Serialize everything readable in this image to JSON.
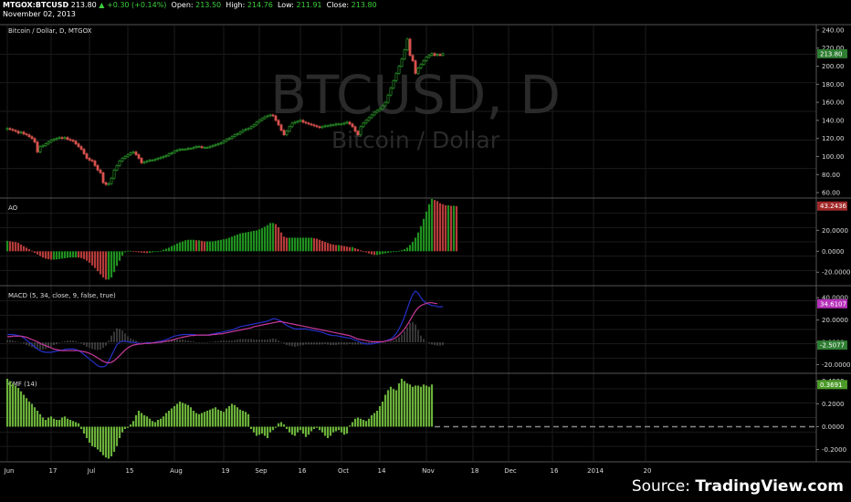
{
  "header": {
    "symbol": "MTGOX:BTCUSD",
    "last": "213.80",
    "change_arrow": "▲",
    "change": "+0.30 (+0.14%)",
    "open_label": "Open:",
    "open": "213.50",
    "high_label": "High:",
    "high": "214.76",
    "low_label": "Low:",
    "low": "211.91",
    "close_label": "Close:",
    "close": "213.80",
    "date": "November 02, 2013"
  },
  "source": {
    "prefix": "Source:",
    "name": "TradingView.com"
  },
  "colors": {
    "up": "#2fa62f",
    "down": "#d9534f",
    "ao_up": "#1f8f1f",
    "ao_down": "#b43a3a",
    "macd": "#2630c8",
    "signal": "#c8389a",
    "cmf": "#6ab03a",
    "grid": "#1b1b1b"
  },
  "chart_data": [
    {
      "type": "candlestick",
      "title": "Bitcoin / Dollar, D, MTGOX",
      "watermark": "BTCUSD, D",
      "watermark_sub": "Bitcoin / Dollar",
      "ylim": [
        55,
        245
      ],
      "yticks": [
        "240.00",
        "220.00",
        "200.00",
        "180.00",
        "160.00",
        "140.00",
        "120.00",
        "100.00",
        "80.00",
        "60.00"
      ],
      "last_value": "213.80",
      "close": [
        131,
        130,
        129,
        128,
        126,
        127,
        125,
        124,
        122,
        120,
        116,
        105,
        111,
        112,
        114,
        116,
        118,
        119,
        120,
        121,
        120,
        121,
        119,
        118,
        117,
        114,
        111,
        108,
        103,
        98,
        96,
        95,
        90,
        85,
        82,
        71,
        69,
        70,
        76,
        85,
        90,
        95,
        98,
        100,
        102,
        104,
        105,
        102,
        98,
        93,
        94,
        95,
        96,
        96,
        97,
        98,
        99,
        100,
        101,
        103,
        104,
        106,
        107,
        108,
        108,
        108,
        109,
        109,
        110,
        111,
        111,
        110,
        110,
        110,
        111,
        112,
        113,
        114,
        115,
        117,
        119,
        120,
        122,
        124,
        125,
        127,
        129,
        130,
        131,
        133,
        135,
        138,
        140,
        142,
        144,
        145,
        146,
        145,
        140,
        135,
        129,
        124,
        128,
        133,
        137,
        138,
        139,
        140,
        138,
        137,
        136,
        135,
        134,
        133,
        132,
        133,
        134,
        134,
        135,
        135,
        136,
        136,
        136,
        137,
        138,
        136,
        133,
        128,
        124,
        133,
        137,
        140,
        143,
        146,
        149,
        151,
        153,
        156,
        160,
        168,
        176,
        184,
        192,
        200,
        208,
        218,
        230,
        212,
        206,
        192,
        198,
        202,
        206,
        210,
        212,
        214,
        212,
        213,
        212,
        213.8
      ],
      "xtick_labels": [
        "Jun",
        "17",
        "Jul",
        "15",
        "Aug",
        "19",
        "Sep",
        "16",
        "Oct",
        "14",
        "Nov",
        "18",
        "Dec",
        "16",
        "2014",
        "20"
      ],
      "xtick_days": [
        0,
        16,
        30,
        44,
        61,
        79,
        92,
        107,
        122,
        136,
        153,
        170,
        183,
        199,
        214,
        233
      ]
    },
    {
      "type": "bar",
      "title": "AO",
      "ylim": [
        -32,
        50
      ],
      "yticks": [
        "20.0000",
        "0.0000",
        "-20.0000"
      ],
      "last_value": "43.2436",
      "values": [
        10,
        9.6,
        9.2,
        8.8,
        8,
        6.5,
        5,
        3.5,
        2,
        0.5,
        -1.5,
        -3,
        -4.5,
        -6,
        -7,
        -7.5,
        -8,
        -8,
        -7.8,
        -7.4,
        -7,
        -6.6,
        -6.2,
        -6,
        -5.8,
        -5.8,
        -6,
        -6.5,
        -7.5,
        -9,
        -11,
        -13.5,
        -16,
        -19,
        -22,
        -25,
        -27,
        -27,
        -25,
        -20,
        -14,
        -9,
        -4,
        -1,
        0.5,
        0.5,
        0,
        -0.5,
        -1,
        -1.3,
        -1.5,
        -1.8,
        -1.5,
        -1,
        -0.5,
        0,
        0.5,
        1.5,
        2.5,
        3.5,
        5,
        6,
        7.5,
        8.5,
        9.5,
        10.5,
        11,
        11,
        11,
        10.5,
        10.5,
        10,
        9.5,
        9.5,
        9.5,
        9.5,
        10,
        10.5,
        11,
        11.5,
        12,
        13,
        14,
        15,
        16,
        17,
        17.5,
        18,
        18.5,
        19,
        19.5,
        20,
        21,
        22,
        23.5,
        25,
        27,
        27,
        26,
        23,
        18,
        14,
        13,
        13,
        13,
        13,
        13,
        13,
        13,
        13,
        13,
        13,
        12.5,
        12,
        11,
        10,
        9,
        8,
        7,
        6.5,
        6,
        6,
        5.5,
        5,
        4.5,
        4,
        4,
        3,
        2,
        1,
        0,
        -1,
        -2,
        -3,
        -3.5,
        -3.5,
        -3,
        -2.5,
        -2,
        -1.5,
        -1,
        -0.5,
        0,
        0.5,
        1,
        2,
        3.5,
        6,
        9,
        13,
        18,
        24,
        31,
        38,
        45,
        50,
        49,
        48,
        46,
        45,
        44,
        44,
        43.5,
        43.5,
        43.2
      ],
      "xlim": [
        0,
        262
      ]
    },
    {
      "type": "line",
      "title": "MACD (5, 34, close, 9, false, true)",
      "ylim": [
        -27,
        50
      ],
      "yticks": [
        "40.0000",
        "20.0000",
        "0.0000",
        "-20.0000"
      ],
      "last_values": [
        "34.6107",
        "-2.5077"
      ],
      "series": [
        {
          "name": "MACD",
          "values": [
            7,
            7,
            7,
            6.5,
            6,
            5.5,
            4,
            2,
            0,
            -2,
            -4,
            -6,
            -7.5,
            -8.5,
            -9,
            -9,
            -9,
            -8.5,
            -8,
            -7.5,
            -7,
            -6.5,
            -6,
            -6,
            -6,
            -6.5,
            -7.5,
            -9,
            -11,
            -13,
            -15,
            -17,
            -19,
            -21,
            -22,
            -22,
            -21,
            -17,
            -12,
            -7,
            -2,
            0,
            1,
            1,
            0.5,
            0,
            0,
            -0.5,
            -1,
            -1,
            -1,
            -0.5,
            -0.5,
            -0.5,
            0,
            0.5,
            1,
            1.5,
            2.5,
            3.5,
            4.5,
            5.5,
            6,
            6.5,
            7,
            7,
            7,
            7,
            7,
            6.5,
            6.5,
            6.5,
            6.5,
            6.5,
            7,
            7.5,
            8,
            8.5,
            9,
            9.5,
            10,
            10.5,
            11,
            12,
            13,
            14,
            14.5,
            15,
            15.5,
            16,
            16.5,
            17,
            17.5,
            18,
            18.5,
            19,
            20,
            21,
            21,
            20,
            19,
            17,
            15,
            14,
            13,
            12,
            12,
            12,
            12,
            12,
            11.5,
            11,
            10.5,
            10,
            9.5,
            9,
            8,
            7,
            6.5,
            6,
            6,
            5.5,
            5,
            4.5,
            4,
            4,
            3,
            2,
            1,
            0,
            -1,
            -1.5,
            -1.5,
            -1.5,
            -1,
            -0.5,
            0,
            0.5,
            1,
            2,
            3,
            5,
            8,
            12,
            17,
            23,
            30,
            37,
            43,
            46,
            44,
            40,
            37,
            35,
            34,
            33,
            33,
            32,
            32,
            32
          ]
        },
        {
          "name": "Signal",
          "values": [
            5,
            5,
            5.5,
            5.5,
            5.5,
            5.5,
            5,
            4.5,
            3.5,
            2.5,
            1.5,
            0.5,
            -1,
            -2,
            -3,
            -4,
            -5,
            -6,
            -6.5,
            -7,
            -7.5,
            -7.5,
            -7.5,
            -7.5,
            -7.5,
            -7.5,
            -7.5,
            -8,
            -8.5,
            -9,
            -10,
            -11,
            -12.5,
            -14,
            -15.5,
            -17,
            -18,
            -18.5,
            -18,
            -16.5,
            -14.5,
            -12,
            -9.5,
            -7,
            -5,
            -3.5,
            -2.5,
            -2,
            -1.5,
            -1.5,
            -1,
            -1,
            -1,
            -0.5,
            -0.5,
            0,
            0,
            0.5,
            1,
            1.5,
            2,
            2.5,
            3.5,
            4,
            4.5,
            5,
            5.5,
            6,
            6,
            6.5,
            6.5,
            6.5,
            6.5,
            6.5,
            6.5,
            7,
            7,
            7.5,
            7.5,
            8,
            8.5,
            9,
            9.5,
            10,
            10.5,
            11,
            11.5,
            12,
            12.5,
            13,
            14,
            14.5,
            15,
            15.5,
            16,
            16.5,
            17,
            17.5,
            18,
            18.5,
            18.5,
            18,
            17.5,
            17,
            16.5,
            16,
            15.5,
            15,
            14.5,
            14,
            13.5,
            13,
            12.5,
            12,
            11.5,
            11,
            10.5,
            10,
            9.5,
            9,
            8.5,
            8,
            7.5,
            7,
            6.5,
            6,
            5,
            4,
            3,
            2.5,
            2,
            1.5,
            1,
            0.5,
            0.5,
            0.5,
            0.5,
            0.5,
            1,
            1.5,
            2,
            3,
            4.5,
            6.5,
            9,
            12,
            15.5,
            19.5,
            24,
            28,
            31,
            33,
            34,
            35,
            35.5,
            35.5,
            35,
            34.6
          ]
        }
      ],
      "histogram": [
        2,
        2,
        1.5,
        1,
        0.5,
        0,
        -1,
        -2.5,
        -3.5,
        -4.5,
        -5.5,
        -6.5,
        -6.5,
        -6.5,
        -6,
        -5,
        -4,
        -2.5,
        -1.5,
        -0.5,
        0.5,
        1,
        1.5,
        1.5,
        1.5,
        1,
        0,
        -1,
        -2.5,
        -4,
        -5,
        -6,
        -6.5,
        -7,
        -6.5,
        -5,
        -3,
        1.5,
        6,
        9.5,
        12.5,
        12,
        10.5,
        8,
        5.5,
        3.5,
        2.5,
        1.5,
        0.5,
        0.5,
        0,
        0.5,
        0.5,
        0,
        0.5,
        0.5,
        1,
        1,
        1.5,
        2,
        2.5,
        3,
        2.5,
        2.5,
        2.5,
        2,
        1.5,
        1,
        1,
        0,
        0,
        0,
        0,
        0,
        0.5,
        0.5,
        1,
        1,
        1.5,
        1.5,
        1.5,
        1.5,
        1.5,
        2,
        2.5,
        3,
        3,
        3,
        3,
        3,
        2.5,
        2.5,
        2.5,
        2.5,
        2.5,
        2.5,
        3,
        3.5,
        3,
        1.5,
        0.5,
        -1,
        -2.5,
        -3,
        -3.5,
        -4,
        -3.5,
        -3,
        -2.5,
        -2,
        -2,
        -2,
        -2,
        -2,
        -2,
        -2,
        -1.5,
        -2,
        -2.5,
        -2.5,
        -2.5,
        -2,
        -2,
        -2,
        -2,
        -1.5,
        -2,
        -2,
        -2,
        -2,
        -2,
        -2,
        -2,
        -1.5,
        -1,
        -0.5,
        -0.5,
        0,
        0,
        0.5,
        1,
        1.5,
        3,
        4.5,
        7,
        10,
        13.5,
        17.5,
        18,
        16,
        11,
        6,
        3,
        0.5,
        -1,
        -2,
        -2.5,
        -3,
        -3,
        -2.5
      ]
    },
    {
      "type": "bar",
      "title": "CMF (14)",
      "ylim": [
        -0.3,
        0.46
      ],
      "yticks": [
        "0.4000",
        "0.2000",
        "0.0000",
        "-0.2000"
      ],
      "last_value": "0.3691",
      "values": [
        0.42,
        0.4,
        0.38,
        0.36,
        0.34,
        0.31,
        0.28,
        0.25,
        0.22,
        0.2,
        0.17,
        0.14,
        0.11,
        0.08,
        0.06,
        0.08,
        0.09,
        0.07,
        0.06,
        0.06,
        0.08,
        0.09,
        0.07,
        0.06,
        0.05,
        0.04,
        0.03,
        -0.02,
        -0.06,
        -0.1,
        -0.14,
        -0.17,
        -0.18,
        -0.2,
        -0.22,
        -0.25,
        -0.27,
        -0.28,
        -0.26,
        -0.22,
        -0.17,
        -0.1,
        -0.05,
        -0.02,
        -0.01,
        0.02,
        0.05,
        0.1,
        0.14,
        0.12,
        0.1,
        0.09,
        0.07,
        0.05,
        0.04,
        0.06,
        0.07,
        0.09,
        0.12,
        0.14,
        0.16,
        0.18,
        0.2,
        0.22,
        0.21,
        0.2,
        0.19,
        0.17,
        0.14,
        0.12,
        0.11,
        0.12,
        0.13,
        0.14,
        0.15,
        0.16,
        0.17,
        0.15,
        0.14,
        0.13,
        0.16,
        0.18,
        0.2,
        0.19,
        0.17,
        0.15,
        0.14,
        0.13,
        0.11,
        -0.02,
        -0.05,
        -0.08,
        -0.07,
        -0.06,
        -0.08,
        -0.1,
        -0.05,
        -0.03,
        -0.01,
        0.03,
        0.04,
        0.02,
        -0.02,
        -0.05,
        -0.07,
        -0.08,
        -0.05,
        -0.03,
        -0.06,
        -0.09,
        -0.07,
        -0.04,
        -0.02,
        -0.01,
        -0.03,
        -0.05,
        -0.08,
        -0.1,
        -0.08,
        -0.05,
        -0.04,
        -0.03,
        -0.05,
        -0.07,
        -0.06,
        0.01,
        0.04,
        0.07,
        0.08,
        0.07,
        0.06,
        0.05,
        0.07,
        0.1,
        0.12,
        0.14,
        0.18,
        0.22,
        0.28,
        0.32,
        0.35,
        0.33,
        0.32,
        0.38,
        0.42,
        0.4,
        0.38,
        0.37,
        0.35,
        0.36,
        0.36,
        0.35,
        0.37,
        0.36,
        0.35,
        0.37
      ]
    }
  ]
}
